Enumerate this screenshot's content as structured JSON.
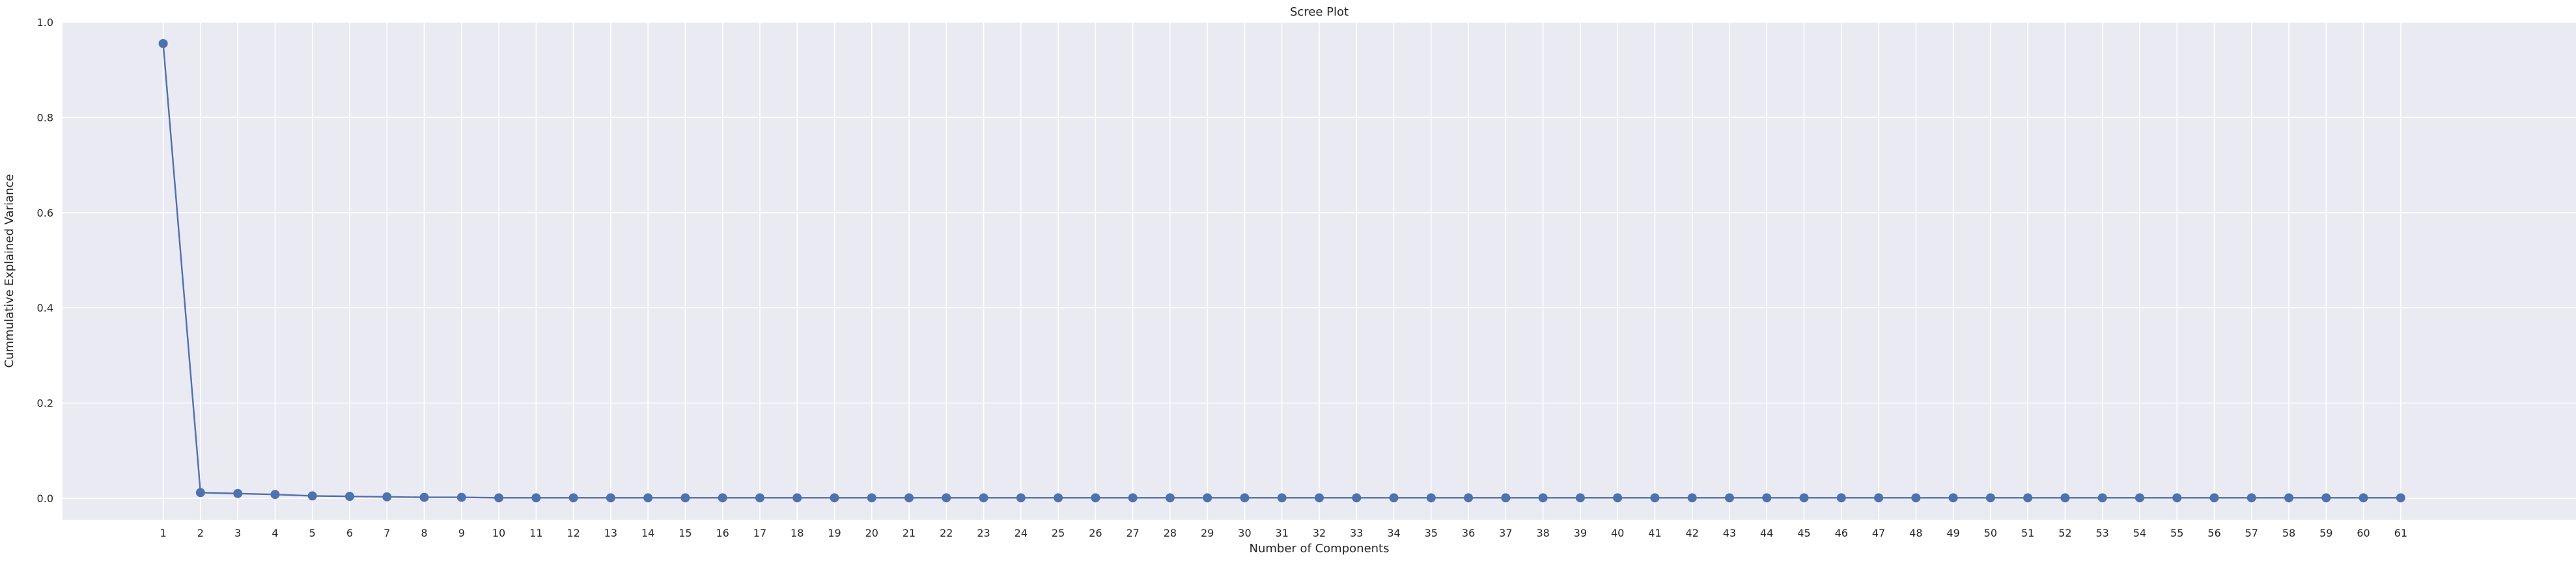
{
  "chart_data": {
    "type": "line",
    "title": "Scree Plot",
    "xlabel": "Number of Components",
    "ylabel": "Cummulative Explained Variance",
    "x": [
      1,
      2,
      3,
      4,
      5,
      6,
      7,
      8,
      9,
      10,
      11,
      12,
      13,
      14,
      15,
      16,
      17,
      18,
      19,
      20,
      21,
      22,
      23,
      24,
      25,
      26,
      27,
      28,
      29,
      30,
      31,
      32,
      33,
      34,
      35,
      36,
      37,
      38,
      39,
      40,
      41,
      42,
      43,
      44,
      45,
      46,
      47,
      48,
      49,
      50,
      51,
      52,
      53,
      54,
      55,
      56,
      57,
      58,
      59,
      60,
      61
    ],
    "x_tick_labels": [
      "1",
      "2",
      "3",
      "4",
      "5",
      "6",
      "7",
      "8",
      "9",
      "10",
      "11",
      "12",
      "13",
      "14",
      "15",
      "16",
      "17",
      "18",
      "19",
      "20",
      "21",
      "22",
      "23",
      "24",
      "25",
      "26",
      "27",
      "28",
      "29",
      "30",
      "31",
      "32",
      "33",
      "34",
      "35",
      "36",
      "37",
      "38",
      "39",
      "40",
      "41",
      "42",
      "43",
      "44",
      "45",
      "46",
      "47",
      "48",
      "49",
      "50",
      "51",
      "52",
      "53",
      "54",
      "55",
      "56",
      "57",
      "58",
      "59",
      "60",
      "61"
    ],
    "series": [
      {
        "values": [
          0.955,
          0.012,
          0.01,
          0.008,
          0.005,
          0.004,
          0.003,
          0.002,
          0.002,
          0.001,
          0.001,
          0.001,
          0.001,
          0.001,
          0.001,
          0.001,
          0.001,
          0.001,
          0.001,
          0.001,
          0.001,
          0.001,
          0.001,
          0.001,
          0.001,
          0.001,
          0.001,
          0.001,
          0.001,
          0.001,
          0.001,
          0.001,
          0.001,
          0.001,
          0.001,
          0.001,
          0.001,
          0.001,
          0.001,
          0.001,
          0.001,
          0.001,
          0.001,
          0.001,
          0.001,
          0.001,
          0.001,
          0.001,
          0.001,
          0.001,
          0.001,
          0.001,
          0.001,
          0.001,
          0.001,
          0.001,
          0.001,
          0.001,
          0.001,
          0.001,
          0.001
        ]
      }
    ],
    "ylim": [
      -0.045,
      1.0
    ],
    "y_ticks": [
      0.0,
      0.2,
      0.4,
      0.6,
      0.8,
      1.0
    ],
    "y_tick_labels": [
      "0.0",
      "0.2",
      "0.4",
      "0.6",
      "0.8",
      "1.0"
    ],
    "xlim": [
      -1.7,
      65.7
    ],
    "grid": true,
    "colors": {
      "plot_background": "#eaeaf2",
      "grid": "#ffffff",
      "series": "#4c72b0"
    }
  }
}
